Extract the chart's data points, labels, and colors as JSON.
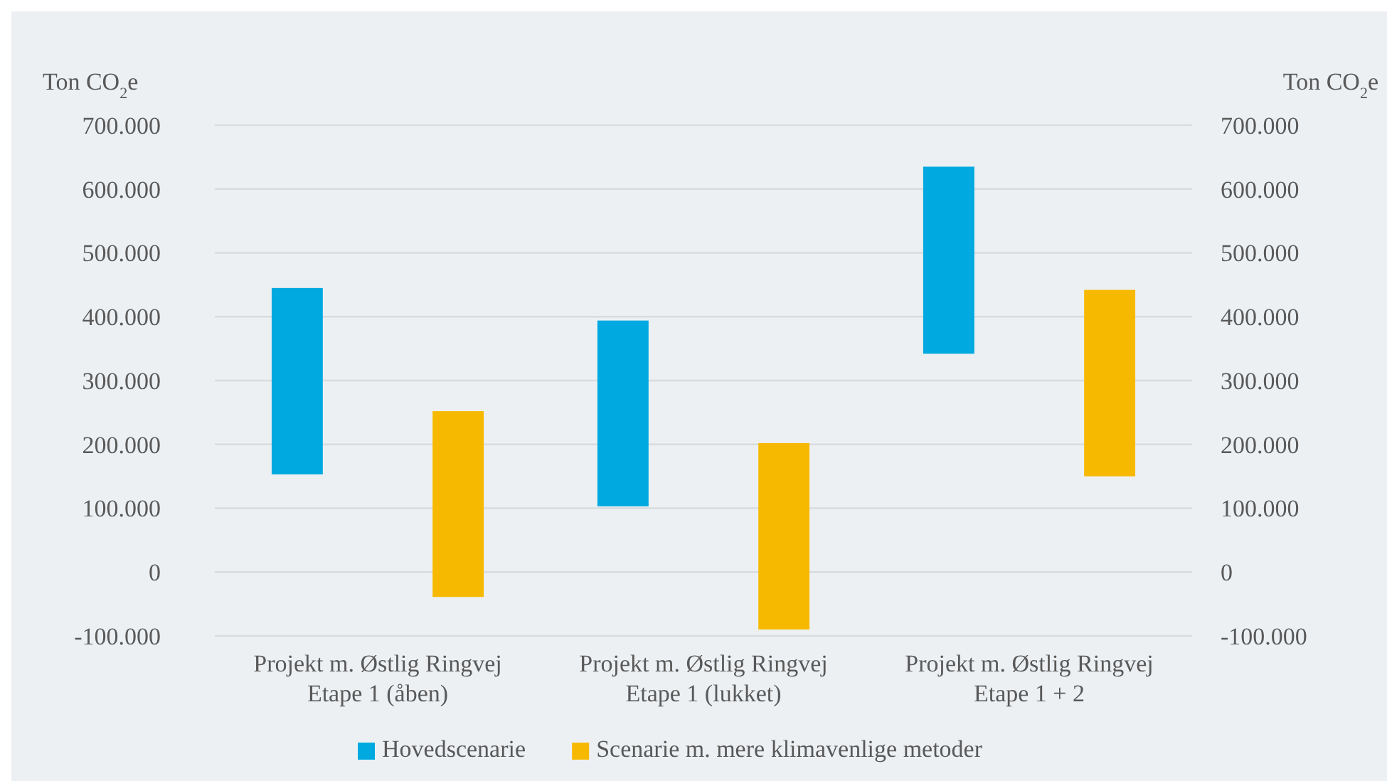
{
  "chart_data": {
    "type": "bar",
    "categories": [
      "Projekt m. Østlig Ringvej Etape 1 (åben)",
      "Projekt m. Østlig Ringvej Etape 1 (lukket)",
      "Projekt m. Østlig Ringvej Etape 1 + 2"
    ],
    "ylabel": "Ton CO$_{2}$e",
    "y2label": "Ton CO$_{2}$e",
    "series": [
      {
        "name": "Hovedscenarie",
        "color": "#00a9e0",
        "base": [
          153000,
          103000,
          342000
        ],
        "values": [
          292000,
          291000,
          293000
        ]
      },
      {
        "name": "Scenarie m. mere klimavenlige metoder",
        "color": "#f7b900",
        "base": [
          -39000,
          -90000,
          150000
        ],
        "values": [
          291000,
          292000,
          292000
        ]
      }
    ],
    "ylim": [
      -100000,
      700000
    ],
    "yticks": [
      {
        "value": -100000,
        "label": "-100.000"
      },
      {
        "value": 0,
        "label": "0"
      },
      {
        "value": 100000,
        "label": "100.000"
      },
      {
        "value": 200000,
        "label": "200.000"
      },
      {
        "value": 300000,
        "label": "300.000"
      },
      {
        "value": 400000,
        "label": "400.000"
      },
      {
        "value": 500000,
        "label": "500.000"
      },
      {
        "value": 600000,
        "label": "600.000"
      },
      {
        "value": 700000,
        "label": "700.000"
      }
    ],
    "y2lim": [
      -100000,
      700000
    ],
    "y2ticks": [
      {
        "value": -100000,
        "label": "-100.000"
      },
      {
        "value": 0,
        "label": "0"
      },
      {
        "value": 100000,
        "label": "100.000"
      },
      {
        "value": 200000,
        "label": "200.000"
      },
      {
        "value": 300000,
        "label": "300.000"
      },
      {
        "value": 400000,
        "label": "400.000"
      },
      {
        "value": 500000,
        "label": "500.000"
      },
      {
        "value": 600000,
        "label": "600.000"
      },
      {
        "value": 700000,
        "label": "700.000"
      }
    ],
    "grid": "y",
    "legend": "bottom"
  }
}
